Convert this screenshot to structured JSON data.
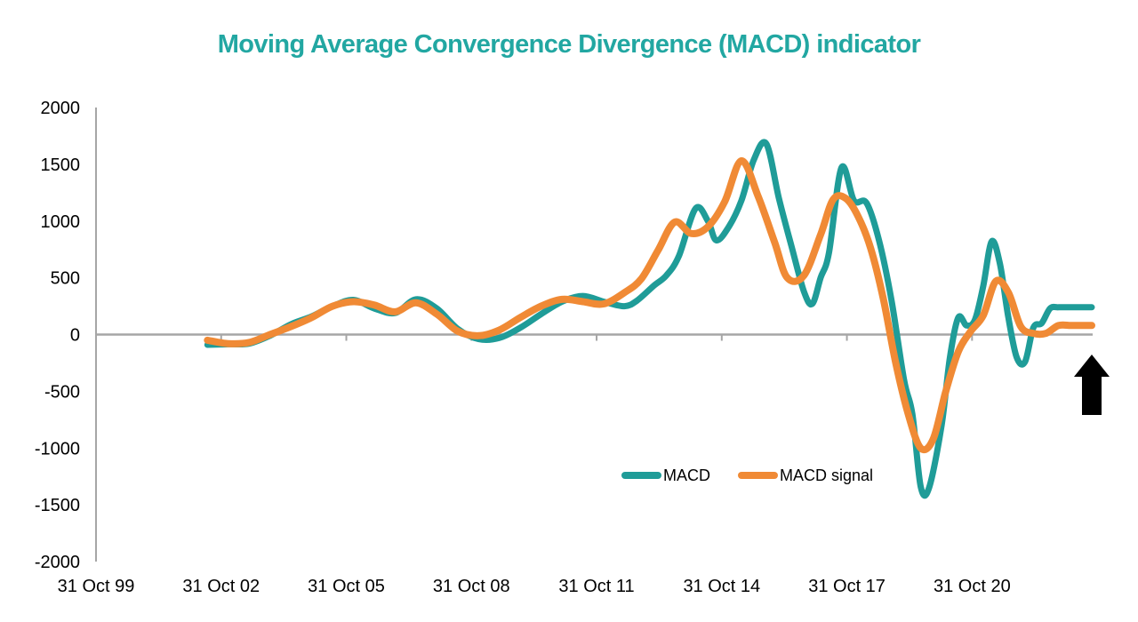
{
  "chart_data": {
    "type": "line",
    "title": "Moving Average Convergence Divergence (MACD) indicator",
    "xlabel": "",
    "ylabel": "",
    "ylim": [
      -2000,
      2000
    ],
    "y_ticks": [
      "2000",
      "1500",
      "1000",
      "500",
      "0",
      "-500",
      "-1000",
      "-1500",
      "-2000"
    ],
    "x_tick_labels": [
      "31 Oct 99",
      "31 Oct 02",
      "31 Oct 05",
      "31 Oct 08",
      "31 Oct 11",
      "31 Oct 14",
      "31 Oct 17",
      "31 Oct 20"
    ],
    "x_range": [
      1999.83,
      2023.7
    ],
    "grid": false,
    "legend": "bottom-center",
    "colors": {
      "macd": "#1f9c98",
      "signal": "#f08a35",
      "title": "#22a7a2",
      "axis": "#a6a6a6",
      "arrow": "#000000"
    },
    "annotation": "up-arrow-icon",
    "series": [
      {
        "name": "MACD",
        "x": [
          2002.5,
          2003.0,
          2003.5,
          2004.0,
          2004.5,
          2005.0,
          2005.5,
          2006.0,
          2006.5,
          2007.0,
          2007.5,
          2008.0,
          2008.5,
          2009.0,
          2009.5,
          2010.0,
          2010.5,
          2011.0,
          2011.5,
          2012.0,
          2012.5,
          2012.8,
          2013.2,
          2013.5,
          2013.8,
          2014.2,
          2014.5,
          2014.7,
          2015.0,
          2015.3,
          2015.6,
          2015.9,
          2016.2,
          2016.5,
          2016.8,
          2017.0,
          2017.2,
          2017.4,
          2017.7,
          2018.0,
          2018.3,
          2018.6,
          2018.9,
          2019.2,
          2019.4,
          2019.6,
          2019.8,
          2020.1,
          2020.3,
          2020.5,
          2020.7,
          2020.9,
          2021.1,
          2021.3,
          2021.5,
          2021.7,
          2021.9,
          2022.1,
          2022.3,
          2022.5,
          2022.7,
          2022.9,
          2023.1,
          2023.3,
          2023.5,
          2023.7
        ],
        "values": [
          -90,
          -85,
          -80,
          -10,
          90,
          160,
          250,
          305,
          230,
          190,
          310,
          230,
          50,
          -40,
          -30,
          60,
          180,
          290,
          340,
          290,
          250,
          300,
          430,
          520,
          690,
          1110,
          1000,
          830,
          950,
          1180,
          1540,
          1680,
          1200,
          780,
          380,
          270,
          500,
          720,
          1470,
          1180,
          1160,
          830,
          300,
          -400,
          -700,
          -1340,
          -1350,
          -800,
          -200,
          150,
          80,
          130,
          430,
          820,
          620,
          150,
          -200,
          -240,
          60,
          100,
          230,
          240,
          240,
          240,
          240,
          240
        ]
      },
      {
        "name": "MACD signal",
        "x": [
          2002.5,
          2003.0,
          2003.5,
          2004.0,
          2004.5,
          2005.0,
          2005.5,
          2006.0,
          2006.5,
          2007.0,
          2007.5,
          2008.0,
          2008.5,
          2009.0,
          2009.5,
          2010.0,
          2010.5,
          2011.0,
          2011.5,
          2012.0,
          2012.5,
          2012.9,
          2013.3,
          2013.7,
          2014.1,
          2014.5,
          2014.9,
          2015.3,
          2015.7,
          2016.1,
          2016.4,
          2016.8,
          2017.2,
          2017.5,
          2017.8,
          2018.1,
          2018.4,
          2018.7,
          2019.0,
          2019.3,
          2019.6,
          2019.9,
          2020.2,
          2020.5,
          2020.8,
          2021.1,
          2021.4,
          2021.7,
          2022.0,
          2022.3,
          2022.6,
          2022.9,
          2023.2,
          2023.5,
          2023.7
        ],
        "values": [
          -50,
          -80,
          -70,
          0,
          70,
          150,
          250,
          290,
          260,
          200,
          280,
          180,
          30,
          -10,
          40,
          150,
          250,
          310,
          290,
          270,
          370,
          490,
          740,
          990,
          890,
          950,
          1170,
          1530,
          1220,
          810,
          500,
          520,
          880,
          1190,
          1200,
          1040,
          760,
          320,
          -250,
          -700,
          -1000,
          -920,
          -500,
          -150,
          30,
          170,
          470,
          370,
          70,
          10,
          10,
          80,
          80,
          80,
          80
        ]
      }
    ]
  },
  "legend": {
    "macd_label": "MACD",
    "signal_label": "MACD signal"
  }
}
